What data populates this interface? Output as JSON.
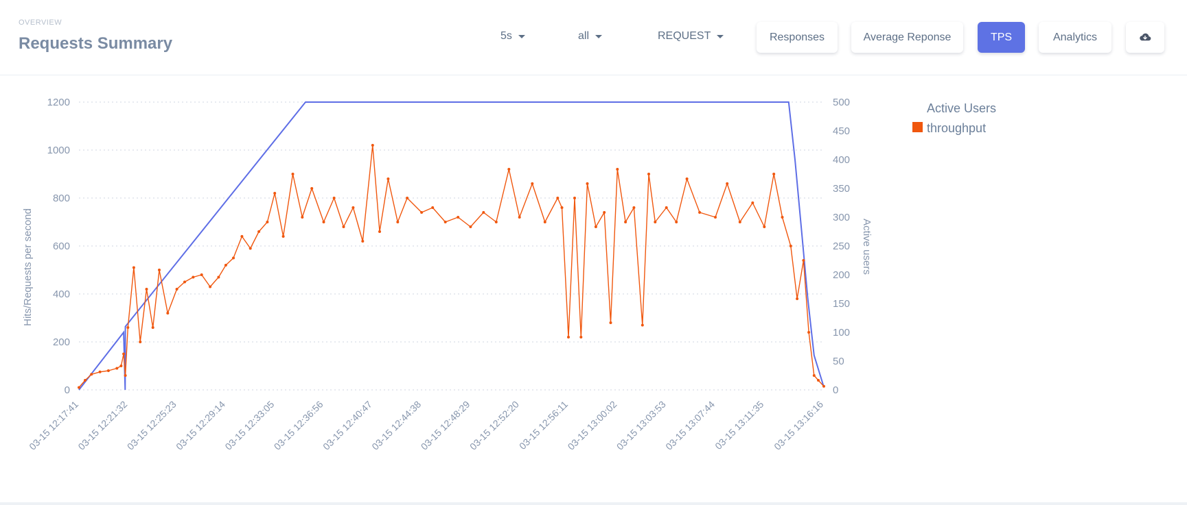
{
  "header": {
    "overline": "OVERVIEW",
    "title": "Requests Summary",
    "dropdowns": {
      "interval": "5s",
      "filter": "all",
      "type": "REQUEST"
    },
    "buttons": {
      "responses": "Responses",
      "average": "Average Reponse",
      "tps": "TPS",
      "analytics": "Analytics"
    },
    "icons": {
      "download": "cloud-download-icon"
    },
    "active_button": "TPS"
  },
  "colors": {
    "accent": "#5e72e4",
    "throughput": "#f0570e",
    "active_users": "#5e6ee6",
    "grid": "#cfd6e0",
    "axis_text": "#8796ad"
  },
  "chart_data": {
    "type": "line",
    "ylabel": "Hits/Requests per second",
    "y2label": "Active users",
    "ylim": [
      0,
      1200
    ],
    "y2lim": [
      0,
      500
    ],
    "yticks": [
      0,
      200,
      400,
      600,
      800,
      1000,
      1200
    ],
    "y2ticks": [
      0,
      50,
      100,
      150,
      200,
      250,
      300,
      350,
      400,
      450,
      500
    ],
    "xlim": [
      "03-15 12:17:41",
      "03-15 13:16:16"
    ],
    "xticks": [
      "03-15 12:17:41",
      "03-15 12:21:32",
      "03-15 12:25:23",
      "03-15 12:29:14",
      "03-15 12:33:05",
      "03-15 12:36:56",
      "03-15 12:40:47",
      "03-15 12:44:38",
      "03-15 12:48:29",
      "03-15 12:52:20",
      "03-15 12:56:11",
      "03-15 13:00:02",
      "03-15 13:03:53",
      "03-15 13:07:44",
      "03-15 13:11:35",
      "03-15 13:16:16"
    ],
    "grid": true,
    "legend_position": "top-right",
    "legend": [
      "Active Users",
      "throughput"
    ],
    "series": [
      {
        "name": "throughput",
        "axis": "left",
        "color": "#f0570e",
        "x": [
          "03-15 12:17:41",
          "03-15 12:18:10",
          "03-15 12:18:40",
          "03-15 12:19:20",
          "03-15 12:20:00",
          "03-15 12:20:40",
          "03-15 12:21:00",
          "03-15 12:21:12",
          "03-15 12:21:20",
          "03-15 12:21:32",
          "03-15 12:22:00",
          "03-15 12:22:30",
          "03-15 12:23:00",
          "03-15 12:23:30",
          "03-15 12:24:00",
          "03-15 12:24:40",
          "03-15 12:25:23",
          "03-15 12:26:00",
          "03-15 12:26:40",
          "03-15 12:27:20",
          "03-15 12:28:00",
          "03-15 12:28:40",
          "03-15 12:29:14",
          "03-15 12:29:50",
          "03-15 12:30:30",
          "03-15 12:31:10",
          "03-15 12:31:50",
          "03-15 12:32:30",
          "03-15 12:33:05",
          "03-15 12:33:45",
          "03-15 12:34:30",
          "03-15 12:35:15",
          "03-15 12:36:00",
          "03-15 12:36:56",
          "03-15 12:37:45",
          "03-15 12:38:30",
          "03-15 12:39:15",
          "03-15 12:40:00",
          "03-15 12:40:47",
          "03-15 12:41:20",
          "03-15 12:42:00",
          "03-15 12:42:45",
          "03-15 12:43:30",
          "03-15 12:44:38",
          "03-15 12:45:30",
          "03-15 12:46:30",
          "03-15 12:47:30",
          "03-15 12:48:29",
          "03-15 12:49:30",
          "03-15 12:50:30",
          "03-15 12:51:30",
          "03-15 12:52:20",
          "03-15 12:53:20",
          "03-15 12:54:20",
          "03-15 12:55:20",
          "03-15 12:55:40",
          "03-15 12:56:11",
          "03-15 12:56:40",
          "03-15 12:57:10",
          "03-15 12:57:40",
          "03-15 12:58:20",
          "03-15 12:59:00",
          "03-15 12:59:30",
          "03-15 13:00:02",
          "03-15 13:00:40",
          "03-15 13:01:20",
          "03-15 13:02:00",
          "03-15 13:02:30",
          "03-15 13:03:00",
          "03-15 13:03:53",
          "03-15 13:04:40",
          "03-15 13:05:30",
          "03-15 13:06:30",
          "03-15 13:07:44",
          "03-15 13:08:40",
          "03-15 13:09:40",
          "03-15 13:10:40",
          "03-15 13:11:35",
          "03-15 13:12:20",
          "03-15 13:13:00",
          "03-15 13:13:40",
          "03-15 13:14:10",
          "03-15 13:14:40",
          "03-15 13:15:05",
          "03-15 13:15:30",
          "03-15 13:15:50",
          "03-15 13:16:16"
        ],
        "values": [
          10,
          40,
          65,
          75,
          80,
          90,
          100,
          150,
          60,
          260,
          510,
          200,
          420,
          260,
          500,
          320,
          420,
          450,
          470,
          480,
          430,
          470,
          520,
          550,
          640,
          590,
          660,
          700,
          820,
          640,
          900,
          720,
          840,
          700,
          800,
          680,
          760,
          620,
          1020,
          660,
          880,
          700,
          800,
          740,
          760,
          700,
          720,
          680,
          740,
          700,
          920,
          720,
          860,
          700,
          800,
          760,
          220,
          800,
          220,
          860,
          680,
          740,
          280,
          920,
          700,
          760,
          270,
          900,
          700,
          760,
          700,
          880,
          740,
          720,
          860,
          700,
          780,
          680,
          900,
          720,
          600,
          380,
          540,
          240,
          60,
          40,
          15
        ]
      },
      {
        "name": "Active Users",
        "axis": "right",
        "color": "#5e6ee6",
        "x": [
          "03-15 12:17:41",
          "03-15 12:21:12",
          "03-15 12:21:19",
          "03-15 12:21:20",
          "03-15 12:35:30",
          "03-15 13:13:30",
          "03-15 13:14:00",
          "03-15 13:14:30",
          "03-15 13:15:00",
          "03-15 13:15:30",
          "03-15 13:16:16"
        ],
        "values": [
          0,
          100,
          0,
          110,
          500,
          500,
          400,
          280,
          160,
          60,
          5
        ]
      }
    ]
  }
}
